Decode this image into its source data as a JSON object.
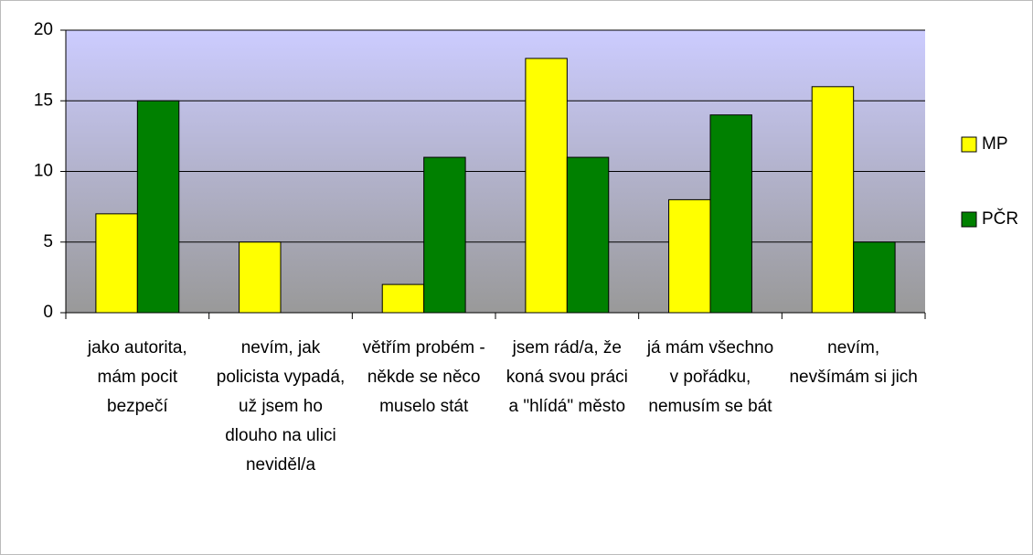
{
  "chart_data": {
    "type": "bar",
    "categories": [
      "jako autorita, mám pocit bezpečí",
      "nevím, jak policista vypadá, už jsem ho dlouho na ulici neviděl/a",
      "větřím probém - někde se něco muselo stát",
      "jsem rád/a, že koná svou práci a \"hlídá\" město",
      "já mám všechno v pořádku, nemusím se bát",
      "nevím, nevšímám si jich"
    ],
    "series": [
      {
        "name": "MP",
        "color": "#ffff00",
        "values": [
          7,
          5,
          2,
          18,
          8,
          16
        ]
      },
      {
        "name": "PČR",
        "color": "#008000",
        "values": [
          15,
          0,
          11,
          11,
          14,
          5
        ]
      }
    ],
    "ylim": [
      0,
      20
    ],
    "yticks": [
      0,
      5,
      10,
      15,
      20
    ],
    "grid": true,
    "legend": "right"
  }
}
